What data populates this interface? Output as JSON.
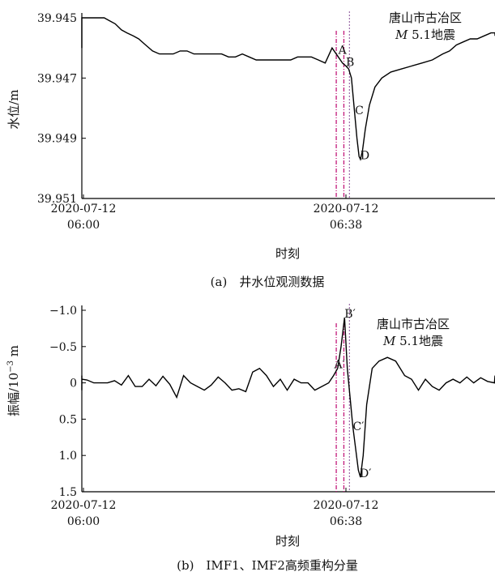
{
  "chart_data": [
    {
      "type": "line",
      "caption": "(a)　井水位观测数据",
      "xlabel": "时刻",
      "ylabel": "水位/m",
      "x_ticks": [
        {
          "date": "2020-07-12",
          "time": "06:00"
        },
        {
          "date": "2020-07-12",
          "time": "06:38"
        }
      ],
      "y_ticks": [
        "39.945",
        "39.947",
        "39.949",
        "39.951"
      ],
      "ylim": [
        39.945,
        39.951
      ],
      "y_inverted": true,
      "grid": false,
      "event_label": {
        "line1": "唐山市古冶区",
        "line2_italic": "M",
        "line2_rest": " 5.1地震"
      },
      "annotations": [
        {
          "label": "A",
          "x": 36.9,
          "y": 39.9462
        },
        {
          "label": "B",
          "x": 38.0,
          "y": 39.9466
        },
        {
          "label": "C",
          "x": 39.3,
          "y": 39.9482
        },
        {
          "label": "D",
          "x": 40.1,
          "y": 39.9497
        }
      ],
      "vlines_min": [
        36.6,
        37.7,
        38.5
      ],
      "series": [
        {
          "x": [
            -7.5,
            -7.0,
            -6.3,
            -5.5,
            -4.8,
            -4.0,
            -3.2,
            -2.3,
            -1.5,
            -0.8,
            0.0,
            0.8,
            1.5,
            2.3,
            3.0,
            3.8,
            4.6,
            5.5,
            6.3,
            7.2,
            8.0,
            9.0,
            10.0,
            11.0,
            12.0,
            13.0,
            14.0,
            15.0,
            16.0,
            17.0,
            18.5,
            20.0,
            21.0,
            22.0,
            23.0,
            24.0,
            25.0,
            26.0,
            27.0,
            28.5,
            30.0,
            31.0,
            32.0,
            33.0,
            34.0,
            35.0,
            36.0,
            36.9,
            37.5,
            38.0,
            38.4,
            38.8,
            39.2,
            39.6,
            39.9,
            40.1,
            40.4,
            40.8,
            41.4,
            42.2,
            43.2,
            44.5,
            46.0,
            47.5,
            49.0,
            50.5,
            52.0,
            53.0,
            54.0,
            55.0,
            56.0,
            57.0,
            58.0,
            59.0,
            60.0,
            61.0,
            62.0
          ],
          "y": [
            39.946,
            39.9459,
            39.9458,
            39.9458,
            39.9458,
            39.9457,
            39.9455,
            39.9453,
            39.9451,
            39.945,
            39.945,
            39.945,
            39.945,
            39.945,
            39.945,
            39.9451,
            39.9452,
            39.9454,
            39.9455,
            39.9456,
            39.9457,
            39.9459,
            39.9461,
            39.9462,
            39.9462,
            39.9462,
            39.9461,
            39.9461,
            39.9462,
            39.9462,
            39.9462,
            39.9462,
            39.9463,
            39.9463,
            39.9462,
            39.9463,
            39.9464,
            39.9464,
            39.9464,
            39.9464,
            39.9464,
            39.9463,
            39.9463,
            39.9463,
            39.9464,
            39.9465,
            39.946,
            39.9463,
            39.9465,
            39.9466,
            39.9467,
            39.947,
            39.948,
            39.949,
            39.9496,
            39.9497,
            39.9494,
            39.9487,
            39.9479,
            39.9473,
            39.947,
            39.9468,
            39.9467,
            39.9466,
            39.9465,
            39.9464,
            39.9462,
            39.9461,
            39.9459,
            39.9458,
            39.9457,
            39.9457,
            39.9456,
            39.9455,
            39.9455,
            39.9456,
            39.9456
          ]
        }
      ]
    },
    {
      "type": "line",
      "caption": "(b)　IMF1、IMF2高频重构分量",
      "xlabel": "时刻",
      "ylabel": "振幅/10",
      "ylabel_exp": "−3",
      "ylabel_unit": " m",
      "x_ticks": [
        {
          "date": "2020-07-12",
          "time": "06:00"
        },
        {
          "date": "2020-07-12",
          "time": "06:38"
        }
      ],
      "y_ticks": [
        "−1.0",
        "−0.5",
        "0",
        "0.5",
        "1.0",
        "1.5"
      ],
      "ylim": [
        -1.0,
        1.5
      ],
      "y_inverted": true,
      "grid": false,
      "event_label": {
        "line1": "唐山市古冶区",
        "line2_italic": "M",
        "line2_rest": " 5.1地震"
      },
      "annotations": [
        {
          "label": "A′",
          "x": 36.3,
          "y": -0.2
        },
        {
          "label": "B′",
          "x": 37.8,
          "y": -0.9
        },
        {
          "label": "C′",
          "x": 39.0,
          "y": 0.65
        },
        {
          "label": "D′",
          "x": 40.0,
          "y": 1.3
        }
      ],
      "vlines_min": [
        36.6,
        37.7,
        38.5
      ],
      "series": [
        {
          "x": [
            -7.5,
            -6.5,
            -5.5,
            -4.5,
            -3.5,
            -2.5,
            -1.5,
            -0.5,
            0.5,
            1.5,
            2.5,
            3.5,
            4.5,
            5.5,
            6.5,
            7.5,
            8.5,
            9.5,
            10.5,
            11.5,
            12.5,
            13.5,
            14.5,
            15.5,
            16.5,
            17.5,
            18.5,
            19.5,
            20.5,
            21.5,
            22.5,
            23.5,
            24.5,
            25.5,
            26.5,
            27.5,
            28.5,
            29.5,
            30.5,
            31.5,
            32.5,
            33.5,
            34.5,
            35.5,
            36.2,
            36.8,
            37.3,
            37.8,
            38.2,
            38.6,
            39.0,
            39.4,
            39.8,
            40.1,
            40.5,
            41.0,
            41.8,
            42.8,
            44.0,
            45.2,
            46.5,
            47.5,
            48.5,
            49.5,
            50.5,
            51.5,
            52.5,
            53.5,
            54.5,
            55.5,
            56.5,
            57.5,
            58.5,
            59.5,
            60.5,
            61.5,
            62.5
          ],
          "y": [
            -0.08,
            -0.1,
            0.0,
            0.1,
            0.1,
            0.02,
            -0.05,
            -0.05,
            -0.04,
            0.0,
            0.0,
            0.0,
            -0.03,
            0.03,
            -0.1,
            0.05,
            0.05,
            -0.05,
            0.04,
            -0.09,
            0.02,
            0.2,
            -0.1,
            0.0,
            0.05,
            0.1,
            0.03,
            -0.08,
            0.0,
            0.1,
            0.08,
            0.12,
            -0.15,
            -0.2,
            -0.1,
            0.05,
            -0.05,
            0.1,
            -0.05,
            0.0,
            0.0,
            0.1,
            0.05,
            0.0,
            -0.1,
            -0.2,
            -0.5,
            -0.9,
            -0.2,
            0.2,
            0.6,
            0.9,
            1.2,
            1.3,
            1.0,
            0.3,
            -0.2,
            -0.3,
            -0.35,
            -0.3,
            -0.1,
            -0.05,
            0.1,
            -0.05,
            0.05,
            0.1,
            0.0,
            -0.05,
            0.0,
            -0.08,
            0.0,
            -0.07,
            -0.02,
            0.0,
            -0.1,
            0.0,
            -0.08
          ]
        }
      ]
    }
  ]
}
